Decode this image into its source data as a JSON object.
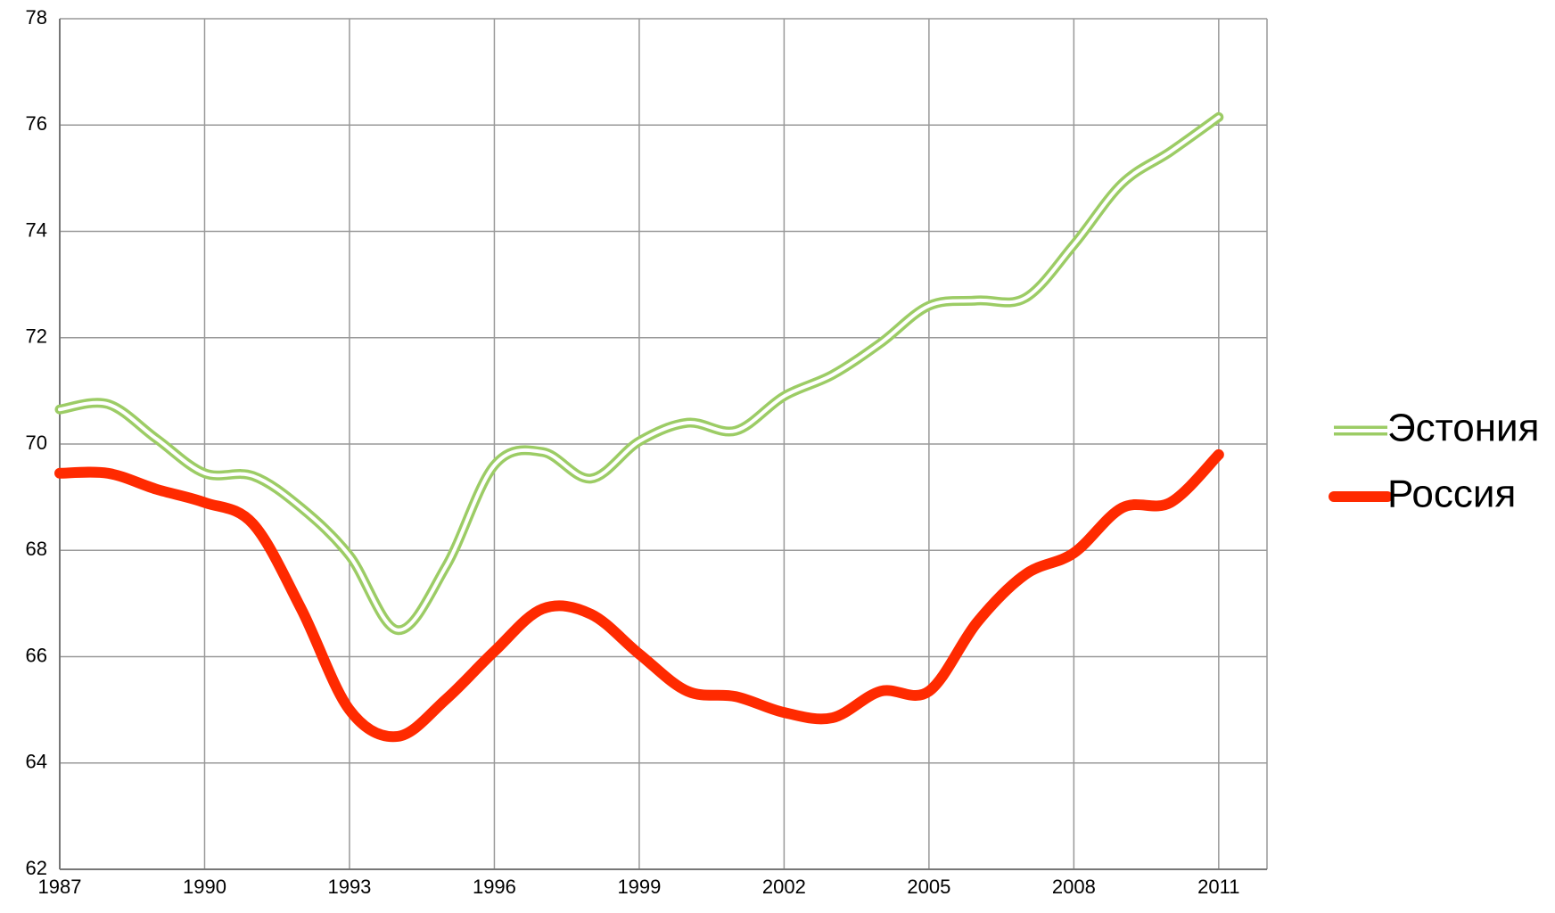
{
  "chart_data": {
    "type": "line",
    "x": [
      1987,
      1988,
      1989,
      1990,
      1991,
      1992,
      1993,
      1994,
      1995,
      1996,
      1997,
      1998,
      1999,
      2000,
      2001,
      2002,
      2003,
      2004,
      2005,
      2006,
      2007,
      2008,
      2009,
      2010,
      2011
    ],
    "series": [
      {
        "name": "Эстония",
        "color": "#9ccc65",
        "line_style": "double",
        "values": [
          70.65,
          70.75,
          70.1,
          69.45,
          69.4,
          68.8,
          67.9,
          66.5,
          67.7,
          69.6,
          69.85,
          69.35,
          70.05,
          70.4,
          70.25,
          70.9,
          71.3,
          71.9,
          72.6,
          72.7,
          72.75,
          73.75,
          74.9,
          75.5,
          76.15
        ]
      },
      {
        "name": "Россия",
        "color": "#ff2a00",
        "line_style": "thick",
        "values": [
          69.45,
          69.45,
          69.15,
          68.9,
          68.5,
          66.9,
          65.0,
          64.5,
          65.2,
          66.1,
          66.9,
          66.8,
          66.05,
          65.35,
          65.25,
          64.95,
          64.85,
          65.35,
          65.35,
          66.65,
          67.55,
          67.95,
          68.8,
          68.9,
          69.8
        ]
      }
    ],
    "xlim": [
      1987,
      2012
    ],
    "xticks": [
      1987,
      1990,
      1993,
      1996,
      1999,
      2002,
      2005,
      2008,
      2011
    ],
    "ylim": [
      62,
      78
    ],
    "yticks": [
      62,
      64,
      66,
      68,
      70,
      72,
      74,
      76,
      78
    ],
    "grid": true,
    "legend": "right",
    "smooth": true
  }
}
